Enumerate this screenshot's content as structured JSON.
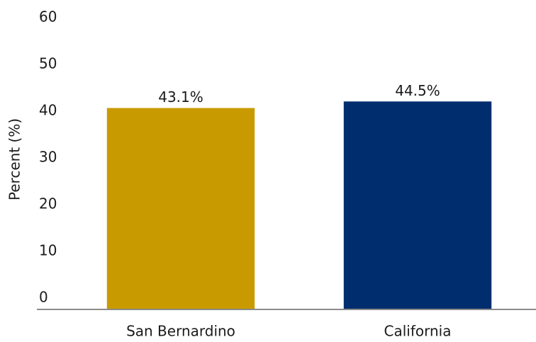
{
  "chart_data": {
    "type": "bar",
    "ylabel": "Percent (%)",
    "categories": [
      "San Bernardino",
      "California"
    ],
    "values": [
      43.1,
      44.5
    ],
    "value_labels": [
      "43.1%",
      "44.5%"
    ],
    "colors": [
      "#c99a00",
      "#002d6e"
    ],
    "ylim": [
      0,
      60
    ],
    "yticks": [
      0,
      10,
      20,
      30,
      40,
      50,
      60
    ],
    "grid": false
  }
}
